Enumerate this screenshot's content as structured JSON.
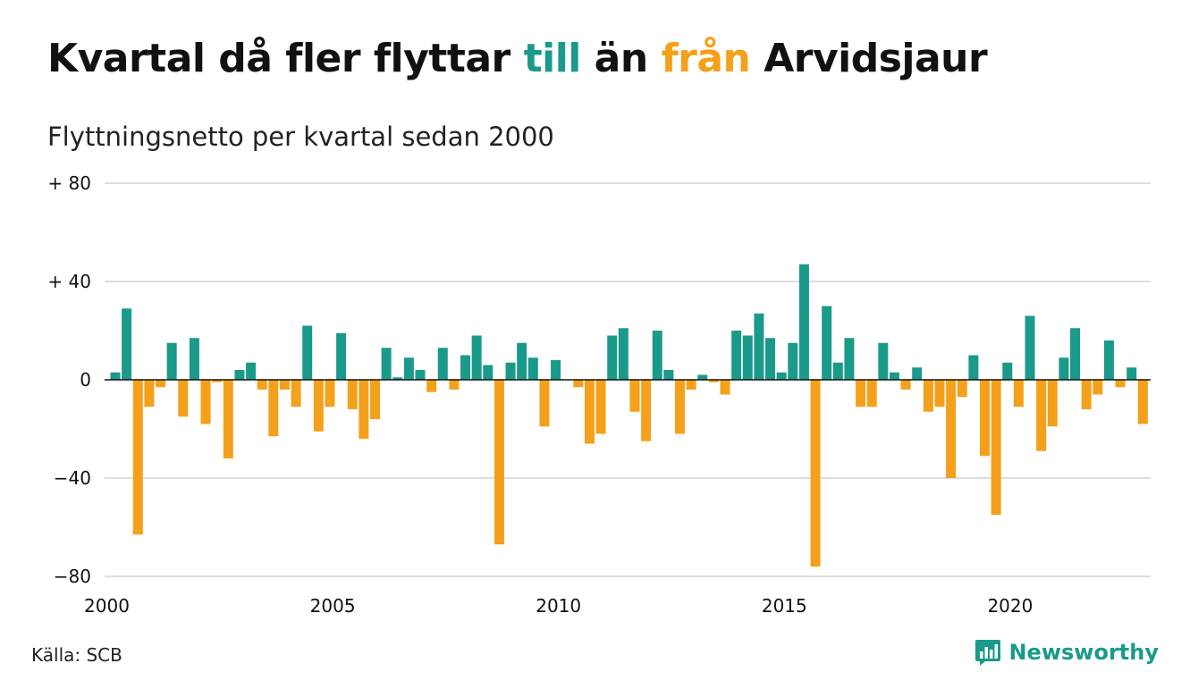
{
  "header": {
    "title_part1": "Kvartal då fler flyttar ",
    "title_till": "till",
    "title_part2": " än ",
    "title_fran": "från",
    "title_part3": " Arvidsjaur",
    "subtitle": "Flyttningsnetto per kvartal sedan 2000"
  },
  "footer": {
    "source": "Källa: SCB",
    "brand": "Newsworthy",
    "brand_icon": "chart-bars-icon"
  },
  "colors": {
    "positive": "#1a9a8a",
    "negative": "#f5a01a",
    "grid": "#dddddd",
    "axis": "#111111"
  },
  "chart_data": {
    "type": "bar",
    "title": "Kvartal då fler flyttar till än från Arvidsjaur",
    "subtitle": "Flyttningsnetto per kvartal sedan 2000",
    "xlabel": "",
    "ylabel": "",
    "ylim": [
      -80,
      80
    ],
    "yticks": [
      {
        "value": 80,
        "label": "+ 80"
      },
      {
        "value": 40,
        "label": "+ 40"
      },
      {
        "value": 0,
        "label": "0"
      },
      {
        "value": -40,
        "label": "−40"
      },
      {
        "value": -80,
        "label": "−80"
      }
    ],
    "xticks": [
      "2000",
      "2005",
      "2010",
      "2015",
      "2020"
    ],
    "start_year": 2000,
    "quarters_per_year": 4,
    "grid": true,
    "legend": "none",
    "values": [
      3,
      29,
      -63,
      -11,
      -3,
      15,
      -15,
      17,
      -18,
      -1,
      -32,
      4,
      7,
      -4,
      -23,
      -4,
      -11,
      22,
      -21,
      -11,
      19,
      -12,
      -24,
      -16,
      13,
      1,
      9,
      4,
      -5,
      13,
      -4,
      10,
      18,
      6,
      -67,
      7,
      15,
      9,
      -19,
      8,
      0,
      -3,
      -26,
      -22,
      18,
      21,
      -13,
      -25,
      20,
      4,
      -22,
      -4,
      2,
      -1,
      -6,
      20,
      18,
      27,
      17,
      3,
      15,
      47,
      -76,
      30,
      7,
      17,
      -11,
      -11,
      15,
      3,
      -4,
      5,
      -13,
      -11,
      -40,
      -7,
      10,
      -31,
      -55,
      7,
      -11,
      26,
      -29,
      -19,
      9,
      21,
      -12,
      -6,
      16,
      -3,
      5,
      -18
    ]
  }
}
